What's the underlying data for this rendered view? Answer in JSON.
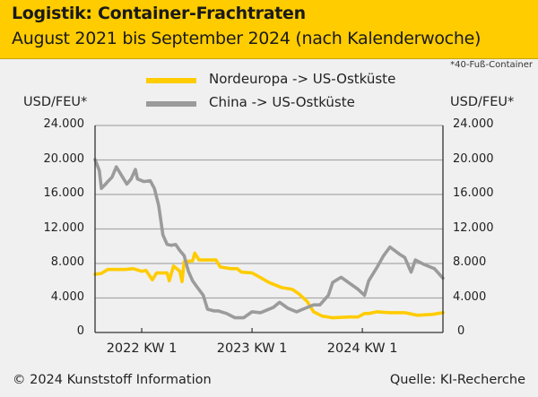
{
  "header": {
    "title": "Logistik: Container-Frachtraten",
    "subtitle": "August 2021 bis September 2024 (nach Kalenderwoche)"
  },
  "footnote": "*40-Fuß-Container",
  "footer": {
    "copyright": "© 2024 Kunststoff Information",
    "source": "Quelle: KI-Recherche"
  },
  "colors": {
    "header_bg": "#ffcc00",
    "nordeuropa": "#ffcc00",
    "china": "#9b9b9b",
    "grid": "#a8a8a8",
    "axis": "#333333",
    "background": "#f0f0f0"
  },
  "chart_data": {
    "type": "line",
    "title": "Logistik: Container-Frachtraten",
    "subtitle": "August 2021 bis September 2024 (nach Kalenderwoche)",
    "ylabel_left": "USD/FEU*",
    "ylabel_right": "USD/FEU*",
    "ylim": [
      0,
      24000
    ],
    "yticks": [
      0,
      4000,
      8000,
      12000,
      16000,
      20000,
      24000
    ],
    "ytick_labels": [
      "0",
      "4.000",
      "8.000",
      "12.000",
      "16.000",
      "20.000",
      "24.000"
    ],
    "xlim_weeks": [
      0,
      164
    ],
    "xtick_weeks": [
      22,
      74,
      126
    ],
    "xtick_labels": [
      "2022 KW 1",
      "2023 KW 1",
      "2024 KW 1"
    ],
    "x_unit": "weeks since start (August 2021)",
    "grid": true,
    "legend_position": "top-center",
    "series": [
      {
        "name": "Nordeuropa -> US-Ostküste",
        "color": "#ffcc00",
        "points": [
          [
            0,
            6750
          ],
          [
            3,
            6850
          ],
          [
            6,
            7300
          ],
          [
            14,
            7300
          ],
          [
            18,
            7400
          ],
          [
            22,
            7100
          ],
          [
            24,
            7200
          ],
          [
            27,
            6100
          ],
          [
            29,
            6900
          ],
          [
            34,
            6900
          ],
          [
            35,
            6000
          ],
          [
            37,
            7700
          ],
          [
            40,
            7100
          ],
          [
            41,
            5900
          ],
          [
            42,
            8200
          ],
          [
            46,
            8300
          ],
          [
            47,
            9200
          ],
          [
            49,
            8400
          ],
          [
            57,
            8400
          ],
          [
            59,
            7600
          ],
          [
            64,
            7400
          ],
          [
            67,
            7400
          ],
          [
            69,
            7000
          ],
          [
            74,
            6900
          ],
          [
            77,
            6500
          ],
          [
            82,
            5800
          ],
          [
            88,
            5200
          ],
          [
            93,
            5000
          ],
          [
            96,
            4500
          ],
          [
            100,
            3600
          ],
          [
            103,
            2400
          ],
          [
            107,
            1900
          ],
          [
            112,
            1700
          ],
          [
            120,
            1800
          ],
          [
            124,
            1800
          ],
          [
            127,
            2200
          ],
          [
            129,
            2200
          ],
          [
            133,
            2400
          ],
          [
            139,
            2300
          ],
          [
            146,
            2300
          ],
          [
            152,
            2000
          ],
          [
            159,
            2100
          ],
          [
            164,
            2300
          ]
        ]
      },
      {
        "name": "China -> US-Ostküste",
        "color": "#9b9b9b",
        "points": [
          [
            0,
            20050
          ],
          [
            2,
            18800
          ],
          [
            3,
            16700
          ],
          [
            5,
            17200
          ],
          [
            6,
            17500
          ],
          [
            8,
            18000
          ],
          [
            10,
            19200
          ],
          [
            13,
            18000
          ],
          [
            15,
            17200
          ],
          [
            17,
            17800
          ],
          [
            19,
            18900
          ],
          [
            20,
            17800
          ],
          [
            23,
            17500
          ],
          [
            26,
            17600
          ],
          [
            28,
            16700
          ],
          [
            30,
            14700
          ],
          [
            32,
            11300
          ],
          [
            34,
            10200
          ],
          [
            36,
            10100
          ],
          [
            38,
            10200
          ],
          [
            40,
            9500
          ],
          [
            42,
            8900
          ],
          [
            44,
            7100
          ],
          [
            46,
            6000
          ],
          [
            48,
            5300
          ],
          [
            51,
            4300
          ],
          [
            53,
            2700
          ],
          [
            56,
            2500
          ],
          [
            58,
            2500
          ],
          [
            62,
            2200
          ],
          [
            66,
            1700
          ],
          [
            70,
            1700
          ],
          [
            74,
            2400
          ],
          [
            78,
            2300
          ],
          [
            84,
            2900
          ],
          [
            87,
            3500
          ],
          [
            91,
            2800
          ],
          [
            95,
            2400
          ],
          [
            98,
            2700
          ],
          [
            103,
            3200
          ],
          [
            106,
            3200
          ],
          [
            110,
            4300
          ],
          [
            112,
            5800
          ],
          [
            116,
            6400
          ],
          [
            120,
            5700
          ],
          [
            124,
            5000
          ],
          [
            127,
            4300
          ],
          [
            129,
            6000
          ],
          [
            133,
            7600
          ],
          [
            136,
            8900
          ],
          [
            139,
            9900
          ],
          [
            144,
            9000
          ],
          [
            146,
            8700
          ],
          [
            149,
            7000
          ],
          [
            151,
            8400
          ],
          [
            155,
            7900
          ],
          [
            160,
            7400
          ],
          [
            164,
            6300
          ]
        ]
      }
    ]
  }
}
